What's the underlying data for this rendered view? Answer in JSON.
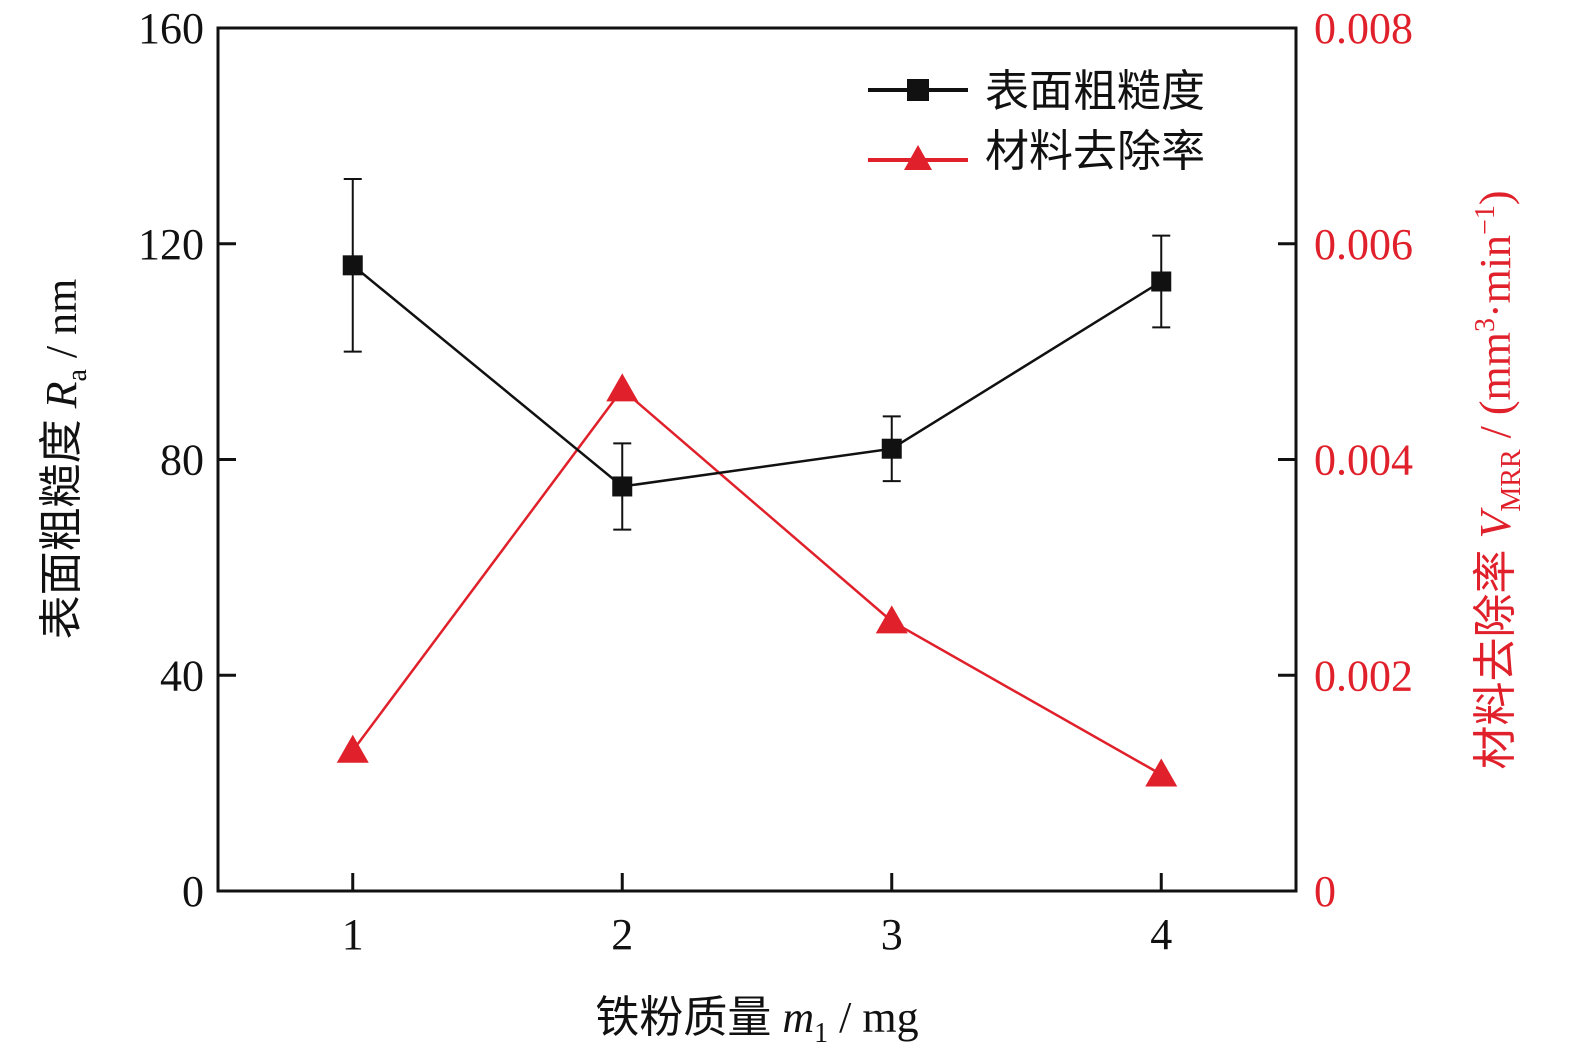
{
  "chart_data": {
    "type": "line",
    "x": [
      1,
      2,
      3,
      4
    ],
    "xlim": [
      0.5,
      4.5
    ],
    "x_ticks": [
      "1",
      "2",
      "3",
      "4"
    ],
    "xlabel": {
      "main": "铁粉质量 ",
      "var": "m",
      "sub": "1",
      "unit": " / mg"
    },
    "y_left": {
      "label": {
        "main": "表面粗糙度 ",
        "var": "R",
        "sub": "a",
        "unit": " / nm"
      },
      "lim": [
        0,
        160
      ],
      "ticks": [
        "0",
        "40",
        "80",
        "120",
        "160"
      ],
      "color": "#111111"
    },
    "y_right": {
      "label": {
        "main": "材料去除率 ",
        "var": "V",
        "sub": "MRR",
        "unit_open": " / (mm",
        "sup1": "3",
        "unit_mid": "·min",
        "sup2": "−1",
        "unit_close": ")"
      },
      "lim": [
        0,
        0.008
      ],
      "ticks": [
        "0",
        "0.002",
        "0.004",
        "0.006",
        "0.008"
      ],
      "color": "#e0202a"
    },
    "series": [
      {
        "name": "表面粗糙度",
        "axis": "left",
        "values": [
          116,
          75,
          82,
          113
        ],
        "errors": [
          16,
          8,
          6,
          8.5
        ],
        "color": "#111111",
        "marker": "square"
      },
      {
        "name": "材料去除率",
        "axis": "right",
        "values": [
          0.0013,
          0.00465,
          0.0025,
          0.00108
        ],
        "color": "#e0202a",
        "marker": "triangle"
      }
    ],
    "legend_position": "top-right",
    "grid": false
  }
}
